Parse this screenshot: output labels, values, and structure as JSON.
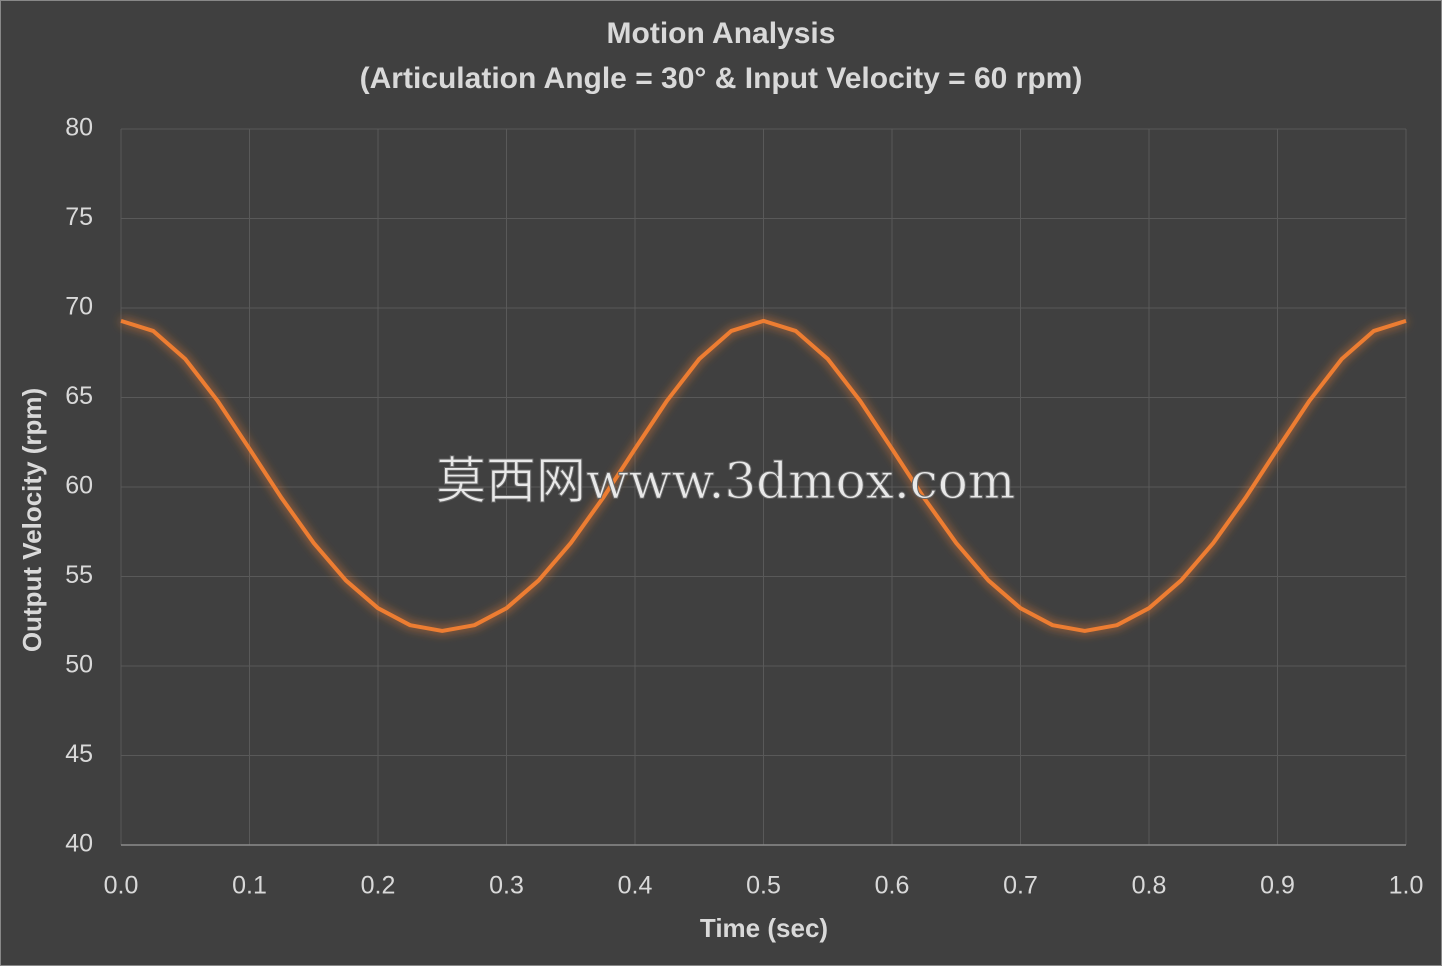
{
  "chart_data": {
    "type": "line",
    "title": "Motion Analysis",
    "subtitle": "(Articulation Angle = 30° & Input Velocity = 60 rpm)",
    "x_label": "Time (sec)",
    "y_label": "Output Velocity (rpm)",
    "watermark": "莫西网www.3dmox.com",
    "x": [
      0,
      0.025,
      0.05,
      0.075,
      0.1,
      0.125,
      0.15,
      0.175,
      0.2,
      0.225,
      0.25,
      0.275,
      0.3,
      0.325,
      0.35,
      0.375,
      0.4,
      0.425,
      0.45,
      0.475,
      0.5,
      0.525,
      0.55,
      0.575,
      0.6,
      0.625,
      0.65,
      0.675,
      0.7,
      0.725,
      0.75,
      0.775,
      0.8,
      0.825,
      0.85,
      0.875,
      0.9,
      0.925,
      0.95,
      0.975,
      1
    ],
    "series": [
      {
        "name": "Output Velocity",
        "color": "#ed7d31",
        "values": [
          69.28,
          68.72,
          67.15,
          64.83,
          62.13,
          59.38,
          56.87,
          54.78,
          53.23,
          52.28,
          51.96,
          52.28,
          53.23,
          54.78,
          56.87,
          59.38,
          62.13,
          64.83,
          67.15,
          68.72,
          69.28,
          68.72,
          67.15,
          64.83,
          62.13,
          59.38,
          56.87,
          54.78,
          53.23,
          52.28,
          51.96,
          52.28,
          53.23,
          54.78,
          56.87,
          59.38,
          62.13,
          64.83,
          67.15,
          68.72,
          69.28
        ]
      }
    ],
    "xlim": [
      0,
      1
    ],
    "xticks": [
      {
        "value": 0,
        "label": "0.0"
      },
      0.1,
      0.2,
      0.3,
      0.4,
      0.5,
      0.6,
      0.7,
      0.8,
      0.9,
      {
        "value": 1,
        "label": "1.0"
      }
    ],
    "ylim": [
      40,
      80
    ],
    "yticks": [
      40,
      45,
      50,
      55,
      60,
      65,
      70,
      75,
      80
    ],
    "grid": true
  }
}
